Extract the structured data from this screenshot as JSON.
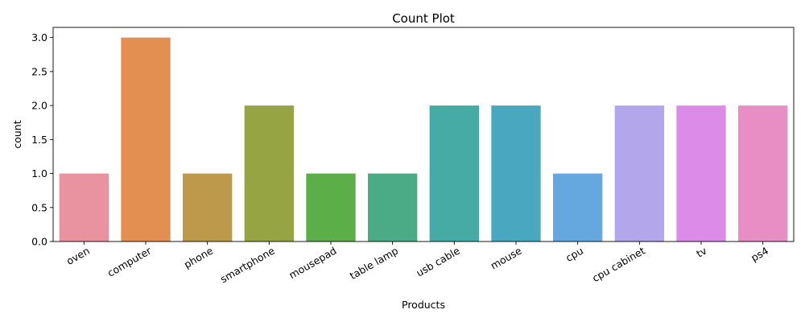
{
  "chart_data": {
    "type": "bar",
    "title": "Count Plot",
    "xlabel": "Products",
    "ylabel": "count",
    "categories": [
      "oven",
      "computer",
      "phone",
      "smartphone",
      "mousepad",
      "table lamp",
      "usb cable",
      "mouse",
      "cpu",
      "cpu cabinet",
      "tv",
      "ps4"
    ],
    "values": [
      1,
      3,
      1,
      2,
      1,
      1,
      2,
      2,
      1,
      2,
      2,
      2
    ],
    "colors": [
      "#e8939f",
      "#e38f51",
      "#bd9a4b",
      "#97a444",
      "#5cae48",
      "#4aab86",
      "#45aba4",
      "#49a8c0",
      "#65a8e0",
      "#b4a6eb",
      "#dc8be9",
      "#e88ec4"
    ],
    "ylim": [
      0,
      3.15
    ],
    "yticks": [
      0.0,
      0.5,
      1.0,
      1.5,
      2.0,
      2.5,
      3.0
    ],
    "ytick_labels": [
      "0.0",
      "0.5",
      "1.0",
      "1.5",
      "2.0",
      "2.5",
      "3.0"
    ],
    "xtick_rotation": 30,
    "grid": false,
    "legend": "none"
  }
}
